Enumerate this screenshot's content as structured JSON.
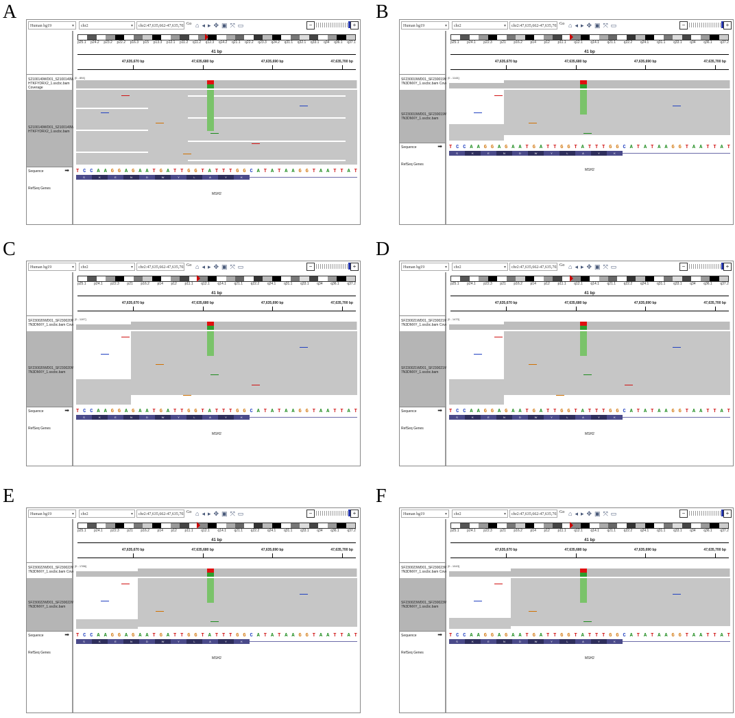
{
  "panels": [
    {
      "letter": "A",
      "genome": "Human hg19",
      "chrom": "chr2",
      "locus": "chr2:47,635,662-47,635,702",
      "go": "Go",
      "cytobands": [
        "p25.1",
        "p24.2",
        "p23.2",
        "p22.2",
        "p16.3",
        "p15",
        "p13.3",
        "p12.1",
        "p11.2",
        "q11.2",
        "q12.3",
        "q14.2",
        "q21.1",
        "q22.2",
        "q23.3",
        "q24.2",
        "q31.1",
        "q32.1",
        "q33.1",
        "q34",
        "q36.1",
        "q37.1"
      ],
      "size_label": "41 bp",
      "ruler_ticks": [
        "47,635,670 bp",
        "47,635,680 bp",
        "47,635,690 bp",
        "47,635,700 bp"
      ],
      "coverage_track": "S2100149WD01_S2100149WD0 HTKFYDRX2_1.sscbc.bam Coverage",
      "coverage_range": "[0 - 894]",
      "bam_track": "S2100149WD01_S2100149WD0 HTKFYDRX2_1.sscbc.bam",
      "sequence_label": "Sequence",
      "refseq_label": "RefSeq Genes",
      "gene": "MSH2"
    },
    {
      "letter": "B",
      "genome": "Human hg19",
      "chrom": "chr2",
      "locus": "chr2:47,635,662-47,635,702",
      "go": "Go",
      "cytobands": [
        "p25.1",
        "p24.1",
        "p22.3",
        "p21",
        "p16.2",
        "p14",
        "p12",
        "p11.1",
        "q12.1",
        "q14.1",
        "q21.1",
        "q22.2",
        "q24.1",
        "q31.1",
        "q33.1",
        "q34",
        "q36.1",
        "q37.2"
      ],
      "size_label": "41 bp",
      "ruler_ticks": [
        "47,635,670 bp",
        "47,635,680 bp",
        "47,635,690 bp",
        "47,635,700 bp"
      ],
      "coverage_track": "SF230019WD01_SF230019WD01L 7N3DMXY_1.sscbc.bam Coverage",
      "coverage_range": "[0 - 1144]",
      "bam_track": "SF230019WD01_SF230019WD01L 7N3DMXY_1.sscbc.bam",
      "sequence_label": "Sequence",
      "refseq_label": "RefSeq Genes",
      "gene": "MSH2"
    },
    {
      "letter": "C",
      "genome": "Human hg19",
      "chrom": "chr2",
      "locus": "chr2:47,635,662-47,635,702",
      "go": "Go",
      "cytobands": [
        "p25.1",
        "p24.1",
        "p22.3",
        "p21",
        "p16.2",
        "p14",
        "p12",
        "p11.1",
        "q12.1",
        "q14.1",
        "q21.1",
        "q22.2",
        "q24.1",
        "q31.1",
        "q33.1",
        "q34",
        "q36.1",
        "q37.2"
      ],
      "size_label": "41 bp",
      "ruler_ticks": [
        "47,635,670 bp",
        "47,635,680 bp",
        "47,635,690 bp",
        "47,635,700 bp"
      ],
      "coverage_track": "SF230020WD01_SF230020WD01L 7N3DMXY_1.sscbc.bam Coverage",
      "coverage_range": "[0 - 1197]",
      "bam_track": "SF230020WD01_SF230020WD01L 7N3DMXY_1.sscbc.bam",
      "sequence_label": "Sequence",
      "refseq_label": "RefSeq Genes",
      "gene": "MSH2"
    },
    {
      "letter": "D",
      "genome": "Human hg19",
      "chrom": "chr2",
      "locus": "chr2:47,635,662-47,635,702",
      "go": "Go",
      "cytobands": [
        "p25.1",
        "p24.1",
        "p22.3",
        "p21",
        "p16.2",
        "p14",
        "p12",
        "p11.1",
        "q12.1",
        "q14.1",
        "q21.1",
        "q22.2",
        "q24.1",
        "q31.1",
        "q33.1",
        "q34",
        "q36.1",
        "q37.2"
      ],
      "size_label": "41 bp",
      "ruler_ticks": [
        "47,635,670 bp",
        "47,635,680 bp",
        "47,635,690 bp",
        "47,635,700 bp"
      ],
      "coverage_track": "SF230021WD01_SF230021WD01L 7N3DMXY_1.sscbc.bam Coverage",
      "coverage_range": "[0 - 1470]",
      "bam_track": "SF230021WD01_SF230021WD01L 7N3DMXY_1.sscbc.bam",
      "sequence_label": "Sequence",
      "refseq_label": "RefSeq Genes",
      "gene": "MSH2"
    },
    {
      "letter": "E",
      "genome": "Human hg19",
      "chrom": "chr2",
      "locus": "chr2:47,635,662-47,635,702",
      "go": "Go",
      "cytobands": [
        "p25.1",
        "p24.1",
        "p22.3",
        "p21",
        "p16.2",
        "p14",
        "p12",
        "p11.1",
        "q12.1",
        "q14.1",
        "q21.1",
        "q22.2",
        "q24.1",
        "q31.1",
        "q33.1",
        "q34",
        "q36.1",
        "q37.2"
      ],
      "size_label": "41 bp",
      "ruler_ticks": [
        "47,635,670 bp",
        "47,635,680 bp",
        "47,635,690 bp",
        "47,635,700 bp"
      ],
      "coverage_track": "SF230022WD01_SF230022WD01L 7N3DMXY_1.sscbc.bam Coverage",
      "coverage_range": "[0 - 1786]",
      "bam_track": "SF230022WD01_SF230022WD01L 7N3DMXY_1.sscbc.bam",
      "sequence_label": "Sequence",
      "refseq_label": "RefSeq Genes",
      "gene": "MSH2"
    },
    {
      "letter": "F",
      "genome": "Human hg19",
      "chrom": "chr2",
      "locus": "chr2:47,635,662-47,635,702",
      "go": "Go",
      "cytobands": [
        "p25.1",
        "p24.1",
        "p22.3",
        "p21",
        "p16.2",
        "p14",
        "p12",
        "p11.1",
        "q12.1",
        "q14.1",
        "q21.1",
        "q22.2",
        "q24.1",
        "q31.1",
        "q33.1",
        "q34",
        "q36.1",
        "q37.2"
      ],
      "size_label": "41 bp",
      "ruler_ticks": [
        "47,635,670 bp",
        "47,635,680 bp",
        "47,635,690 bp",
        "47,635,700 bp"
      ],
      "coverage_track": "SF230023WD01_SF230023WD01L 7N3DMXY_1.sscbc.bam Coverage",
      "coverage_range": "[0 - 1043]",
      "bam_track": "SF230023WD01_SF230023WD01L 7N3DMXY_1.sscbc.bam",
      "sequence_label": "Sequence",
      "refseq_label": "RefSeq Genes",
      "gene": "MSH2"
    }
  ],
  "sequence": "TCCAAGGAGAATGATTGGTATTTGGCATATAAGGTAATTAT",
  "amino_acids": [
    "S",
    "K",
    "E",
    "N",
    "D",
    "W",
    "Y",
    "L",
    "A",
    "Y",
    "K"
  ],
  "colors": {
    "A": "#1a8a1a",
    "C": "#2040c0",
    "G": "#d07000",
    "T": "#d01010",
    "variant_ref": "#2e9e2e",
    "variant_alt": "#e01010",
    "variant_reads": "#7ac36a",
    "reads": "#c6c6c6",
    "coverage": "#bdbdbd",
    "aa_bar": "#2e2e5c"
  },
  "icons": [
    "home-icon",
    "back-arrow-icon",
    "forward-arrow-icon",
    "refresh-icon",
    "region-icon",
    "fit-icon",
    "popup-icon",
    "zoom-minus-icon",
    "zoom-plus-icon"
  ]
}
